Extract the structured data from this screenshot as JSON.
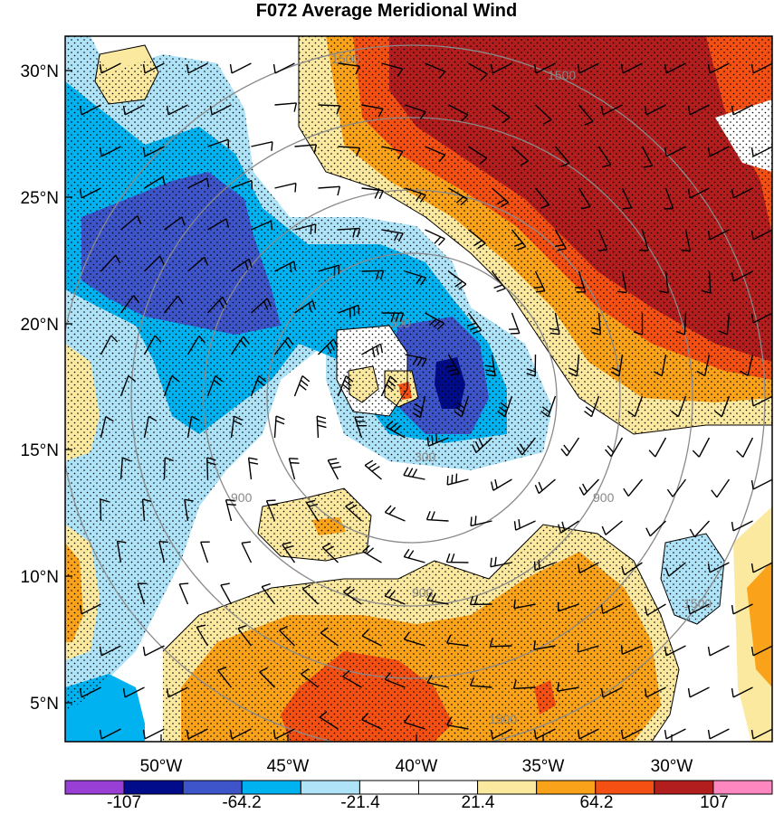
{
  "title": "F072 Average Meridional Wind",
  "lat_ticks": [
    "30°N",
    "25°N",
    "20°N",
    "15°N",
    "10°N",
    "5°N"
  ],
  "lon_ticks": [
    "50°W",
    "45°W",
    "40°W",
    "35°W",
    "30°W"
  ],
  "range_rings": [
    "300",
    "900",
    "1500"
  ],
  "colorbar": {
    "colors": [
      "#9a3fd6",
      "#000c8a",
      "#3d55c8",
      "#00b2f0",
      "#aee3f8",
      "#ffffff",
      "#ffffff",
      "#fbe9a0",
      "#f9a21a",
      "#f45014",
      "#b21e1e",
      "#ff87c0"
    ],
    "labels": [
      "-107",
      "-64.2",
      "-21.4",
      "21.4",
      "64.2",
      "107"
    ]
  }
}
